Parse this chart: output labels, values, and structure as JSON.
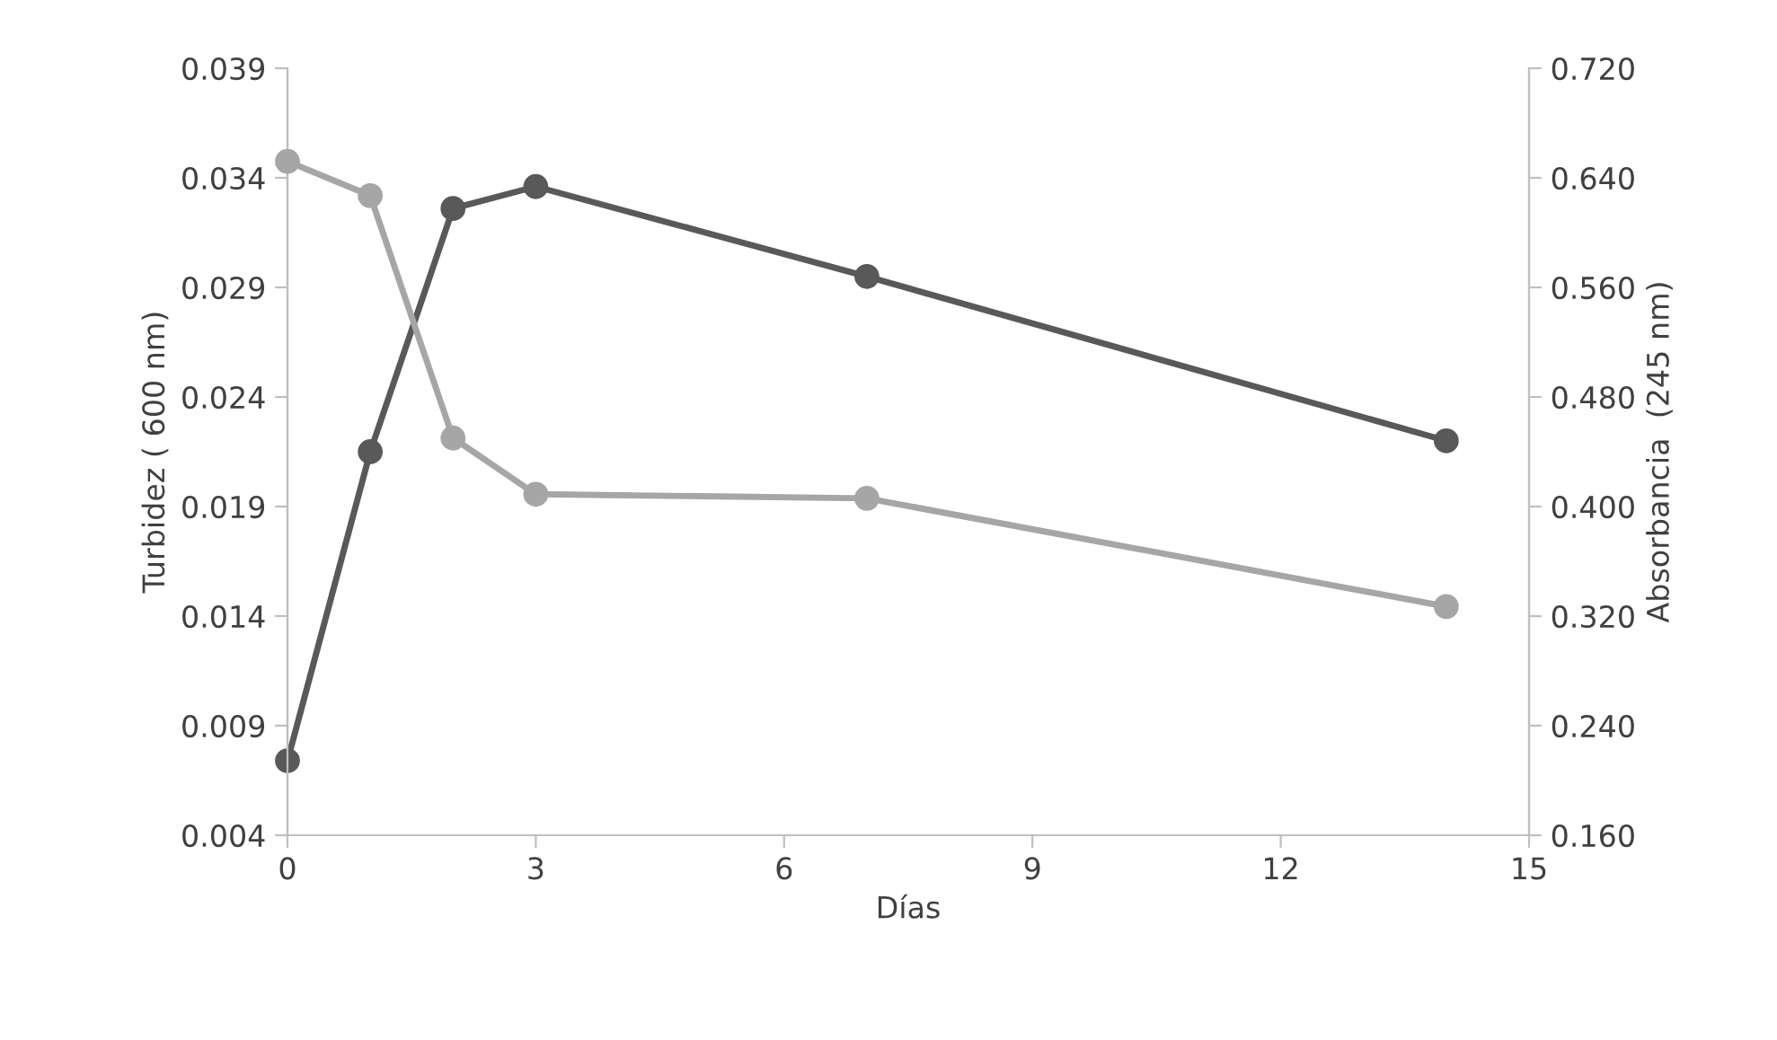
{
  "chart_data": {
    "type": "line",
    "xlabel": "Días",
    "ylabel": "Turbidez ( 600 nm)",
    "y2label": "Absorbancia  (245 nm)",
    "x": [
      0,
      1,
      2,
      3,
      7,
      14
    ],
    "series": [
      {
        "color": "#595959",
        "values": [
          0.0074,
          0.0215,
          0.0326,
          0.0336,
          0.0295,
          0.022
        ]
      },
      {
        "color": "#a6a6a6",
        "axis": "y2",
        "values": [
          0.652,
          0.627,
          0.45,
          0.409,
          0.406,
          0.327
        ]
      }
    ],
    "xlim": [
      0,
      15
    ],
    "xticks": [
      0,
      3,
      6,
      9,
      12,
      15
    ],
    "ylim": [
      0.004,
      0.039
    ],
    "yticks": [
      {
        "value": 0.004,
        "label": "0.004"
      },
      {
        "value": 0.009,
        "label": "0.009"
      },
      {
        "value": 0.014,
        "label": "0.014"
      },
      {
        "value": 0.019,
        "label": "0.019"
      },
      {
        "value": 0.024,
        "label": "0.024"
      },
      {
        "value": 0.029,
        "label": "0.029"
      },
      {
        "value": 0.034,
        "label": "0.034"
      },
      {
        "value": 0.039,
        "label": "0.039"
      }
    ],
    "y2lim": [
      0.16,
      0.72
    ],
    "y2ticks": [
      {
        "value": 0.16,
        "label": "0.160"
      },
      {
        "value": 0.24,
        "label": "0.240"
      },
      {
        "value": 0.32,
        "label": "0.320"
      },
      {
        "value": 0.4,
        "label": "0.400"
      },
      {
        "value": 0.48,
        "label": "0.480"
      },
      {
        "value": 0.56,
        "label": "0.560"
      },
      {
        "value": 0.64,
        "label": "0.640"
      },
      {
        "value": 0.72,
        "label": "0.720"
      }
    ],
    "grid": false,
    "legend": false,
    "marker": "circle",
    "line_style": "solid"
  }
}
